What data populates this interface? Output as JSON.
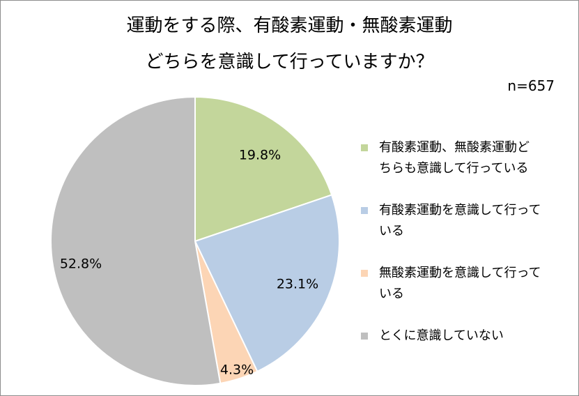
{
  "title_line1": "運動をする際、有酸素運動・無酸素運動",
  "title_line2": "どちらを意識して行っていますか？",
  "sample_size": "n=657",
  "legend": [
    {
      "lines": [
        "有酸素運動、無酸素運動ど",
        "ちらも意識して行っている"
      ],
      "color": "#c3d69b"
    },
    {
      "lines": [
        "有酸素運動を意識して行って",
        "いる"
      ],
      "color": "#b9cde5"
    },
    {
      "lines": [
        "無酸素運動を意識して行って",
        "いる"
      ],
      "color": "#fcd5b5"
    },
    {
      "lines": [
        "とくに意識していない"
      ],
      "color": "#bfbfbf"
    }
  ],
  "chart_data": {
    "type": "pie",
    "title": "運動をする際、有酸素運動・無酸素運動どちらを意識して行っていますか？",
    "categories": [
      "有酸素運動、無酸素運動どちらも意識して行っている",
      "有酸素運動を意識して行っている",
      "無酸素運動を意識して行っている",
      "とくに意識していない"
    ],
    "values": [
      19.8,
      23.1,
      4.3,
      52.8
    ],
    "labels": [
      "19.8%",
      "23.1%",
      "4.3%",
      "52.8%"
    ],
    "colors": [
      "#c3d69b",
      "#b9cde5",
      "#fcd5b5",
      "#bfbfbf"
    ],
    "legend_position": "right"
  }
}
